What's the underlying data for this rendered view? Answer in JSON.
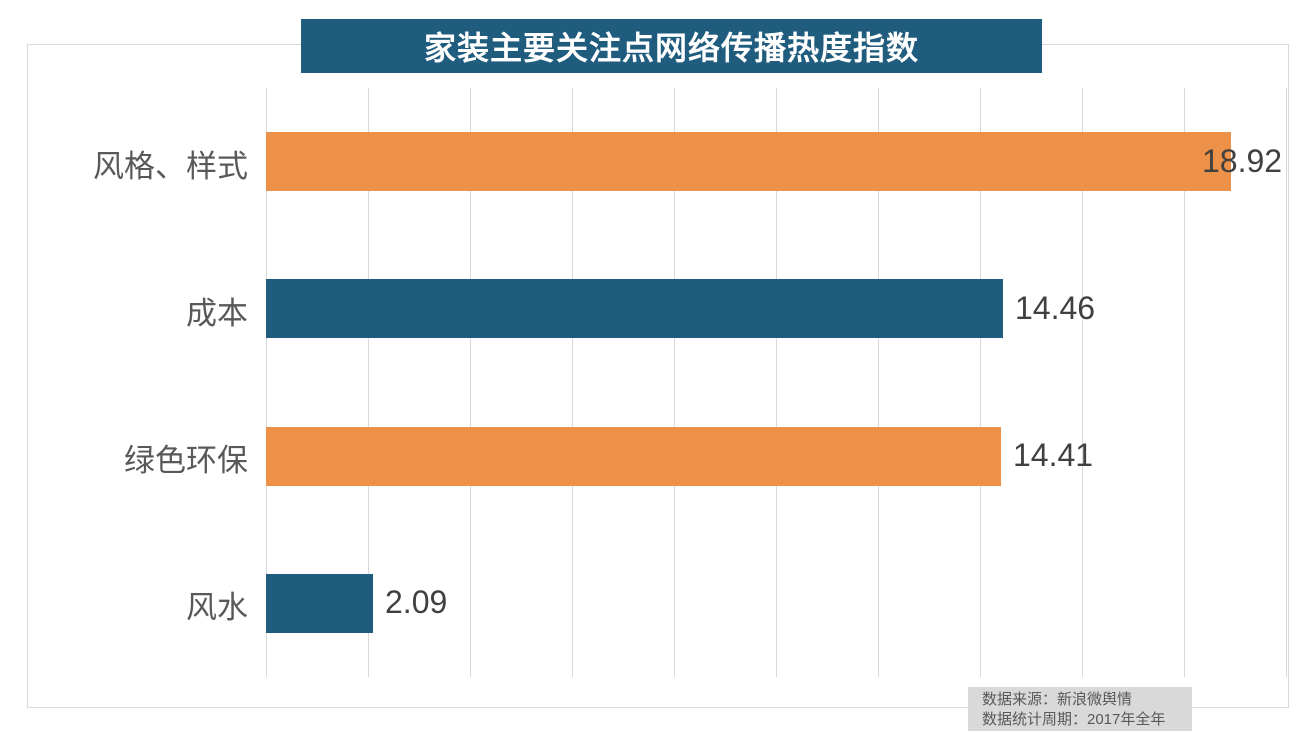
{
  "title": "家装主要关注点网络传播热度指数",
  "colors": {
    "teal": "#1f5c7d",
    "orange": "#ed9148",
    "grid": "#d9d9d9",
    "frame_border": "#d9d9d9",
    "category_text": "#595959",
    "value_text": "#404040",
    "title_text": "#ffffff",
    "note_bg": "#d9d9d9",
    "note_text": "#595959",
    "background": "#ffffff"
  },
  "chart_data": {
    "type": "bar",
    "orientation": "horizontal",
    "title": "家装主要关注点网络传播热度指数",
    "categories": [
      "风格、样式",
      "成本",
      "绿色环保",
      "风水"
    ],
    "values": [
      18.92,
      14.46,
      14.41,
      2.09
    ],
    "value_labels": [
      "18.92",
      "14.46",
      "14.41",
      "2.09"
    ],
    "bar_colors": [
      "#ed9148",
      "#1f5c7d",
      "#ed9148",
      "#1f5c7d"
    ],
    "xlabel": "",
    "ylabel": "",
    "xlim": [
      0,
      20
    ],
    "grid_interval": 2,
    "grid": true,
    "legend": false,
    "value_label_position": "outside-end-clamped"
  },
  "source_note": {
    "line1": "数据来源：新浪微舆情",
    "line2": "数据统计周期：2017年全年"
  }
}
